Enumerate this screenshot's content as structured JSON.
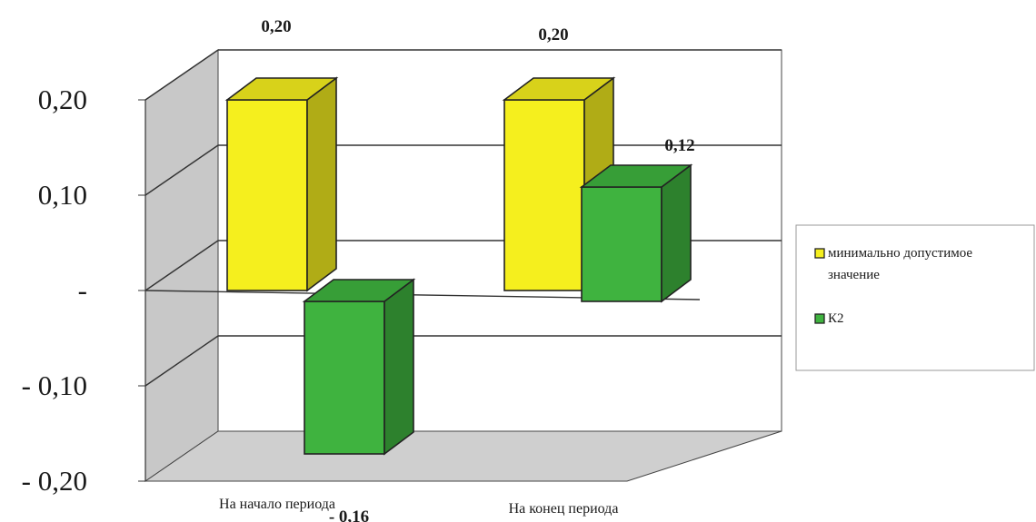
{
  "chart_data": {
    "type": "bar",
    "style": "3d-clustered-column",
    "categories": [
      "На начало периода",
      "На конец периода"
    ],
    "series": [
      {
        "name": "минимально допустимое значение",
        "values": [
          0.2,
          0.2
        ],
        "color": "#f5ef1e",
        "labels": [
          "0,20",
          "0,20"
        ]
      },
      {
        "name": "К2",
        "values": [
          -0.16,
          0.12
        ],
        "color": "#3fb33f",
        "labels": [
          "- 0,16",
          "0,12"
        ]
      }
    ],
    "y_ticks": [
      {
        "value": 0.2,
        "label": "0,20"
      },
      {
        "value": 0.1,
        "label": "0,10"
      },
      {
        "value": 0.0,
        "label": "-"
      },
      {
        "value": -0.1,
        "label": "- 0,10"
      },
      {
        "value": -0.2,
        "label": "- 0,20"
      }
    ],
    "ylim": [
      -0.2,
      0.2
    ],
    "grid": true,
    "legend_position": "right"
  }
}
